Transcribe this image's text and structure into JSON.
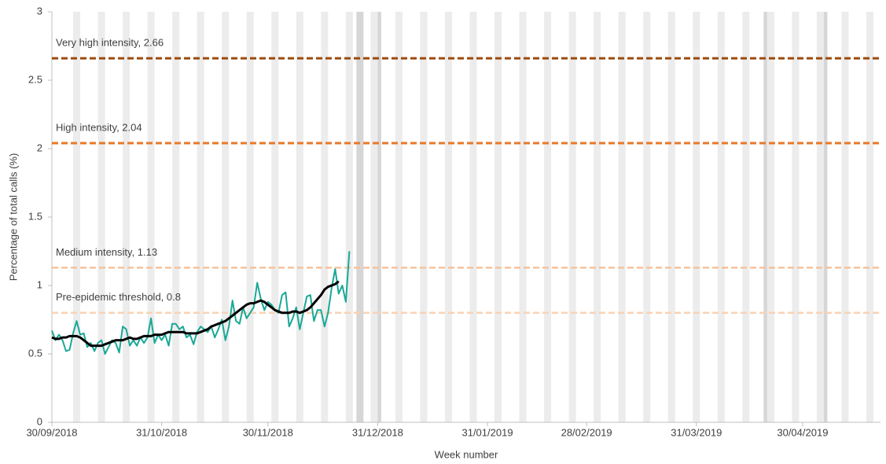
{
  "chart_data": {
    "type": "line",
    "y_label": "Percentage of total calls (%)",
    "x_label": "Week number",
    "x": [
      "30/09/2018",
      "01/10/2018",
      "02/10/2018",
      "03/10/2018",
      "04/10/2018",
      "05/10/2018",
      "06/10/2018",
      "07/10/2018",
      "08/10/2018",
      "09/10/2018",
      "10/10/2018",
      "11/10/2018",
      "12/10/2018",
      "13/10/2018",
      "14/10/2018",
      "15/10/2018",
      "16/10/2018",
      "17/10/2018",
      "18/10/2018",
      "19/10/2018",
      "20/10/2018",
      "21/10/2018",
      "22/10/2018",
      "23/10/2018",
      "24/10/2018",
      "25/10/2018",
      "26/10/2018",
      "27/10/2018",
      "28/10/2018",
      "29/10/2018",
      "30/10/2018",
      "31/10/2018",
      "01/11/2018",
      "02/11/2018",
      "03/11/2018",
      "04/11/2018",
      "05/11/2018",
      "06/11/2018",
      "07/11/2018",
      "08/11/2018",
      "09/11/2018",
      "10/11/2018",
      "11/11/2018",
      "12/11/2018",
      "13/11/2018",
      "14/11/2018",
      "15/11/2018",
      "16/11/2018",
      "17/11/2018",
      "18/11/2018",
      "19/11/2018",
      "20/11/2018",
      "21/11/2018",
      "22/11/2018",
      "23/11/2018",
      "24/11/2018",
      "25/11/2018",
      "26/11/2018",
      "27/11/2018",
      "28/11/2018",
      "29/11/2018",
      "30/11/2018",
      "01/12/2018",
      "02/12/2018",
      "03/12/2018",
      "04/12/2018",
      "05/12/2018",
      "06/12/2018",
      "07/12/2018",
      "08/12/2018",
      "09/12/2018",
      "10/12/2018",
      "11/12/2018",
      "12/12/2018",
      "13/12/2018",
      "14/12/2018",
      "15/12/2018",
      "16/12/2018",
      "17/12/2018",
      "18/12/2018",
      "19/12/2018",
      "20/12/2018",
      "21/12/2018",
      "22/12/2018",
      "23/12/2018"
    ],
    "series": [
      {
        "color": "#19a896",
        "width": 2,
        "values": [
          0.67,
          0.6,
          0.64,
          0.6,
          0.52,
          0.53,
          0.65,
          0.74,
          0.64,
          0.65,
          0.55,
          0.58,
          0.52,
          0.58,
          0.6,
          0.5,
          0.55,
          0.6,
          0.58,
          0.51,
          0.7,
          0.68,
          0.56,
          0.6,
          0.56,
          0.62,
          0.58,
          0.62,
          0.76,
          0.58,
          0.64,
          0.6,
          0.64,
          0.56,
          0.72,
          0.72,
          0.68,
          0.7,
          0.62,
          0.64,
          0.57,
          0.66,
          0.7,
          0.68,
          0.66,
          0.7,
          0.62,
          0.68,
          0.75,
          0.6,
          0.7,
          0.89,
          0.74,
          0.72,
          0.84,
          0.76,
          0.8,
          0.84,
          1.02,
          0.9,
          0.82,
          0.88,
          0.86,
          0.82,
          0.8,
          0.93,
          0.95,
          0.7,
          0.76,
          0.84,
          0.68,
          0.8,
          0.92,
          0.93,
          0.74,
          0.82,
          0.82,
          0.7,
          0.8,
          0.98,
          1.12,
          0.94,
          1.0,
          0.88,
          1.25
        ]
      },
      {
        "color": "#000000",
        "width": 3,
        "values": [
          0.62,
          0.61,
          0.61,
          0.62,
          0.62,
          0.63,
          0.63,
          0.63,
          0.62,
          0.6,
          0.58,
          0.56,
          0.56,
          0.56,
          0.56,
          0.57,
          0.58,
          0.59,
          0.6,
          0.6,
          0.6,
          0.61,
          0.62,
          0.61,
          0.61,
          0.62,
          0.63,
          0.63,
          0.63,
          0.64,
          0.64,
          0.64,
          0.65,
          0.66,
          0.66,
          0.66,
          0.66,
          0.66,
          0.65,
          0.65,
          0.65,
          0.65,
          0.66,
          0.67,
          0.68,
          0.7,
          0.71,
          0.72,
          0.73,
          0.74,
          0.76,
          0.78,
          0.8,
          0.82,
          0.84,
          0.86,
          0.87,
          0.87,
          0.88,
          0.89,
          0.88,
          0.86,
          0.84,
          0.82,
          0.81,
          0.8,
          0.8,
          0.8,
          0.81,
          0.81,
          0.8,
          0.81,
          0.82,
          0.84,
          0.87,
          0.9,
          0.93,
          0.97,
          0.99,
          1.0,
          1.01,
          1.03,
          null,
          null,
          null
        ]
      }
    ],
    "thresholds": [
      {
        "label": "Very high intensity, 2.66",
        "value": 2.66,
        "color": "#9c4a0c"
      },
      {
        "label": "High intensity, 2.04",
        "value": 2.04,
        "color": "#e8782a"
      },
      {
        "label": "Medium intensity, 1.13",
        "value": 1.13,
        "color": "#f5c29c"
      },
      {
        "label": "Pre-epidemic threshold, 0.8",
        "value": 0.8,
        "color": "#f8d3b6"
      }
    ],
    "xlim": [
      "30/09/2018",
      "22/05/2019"
    ],
    "xticks": [
      "30/09/2018",
      "31/10/2018",
      "30/11/2018",
      "31/12/2018",
      "31/01/2019",
      "28/02/2019",
      "31/03/2019",
      "30/04/2019"
    ],
    "ylim": [
      0,
      3
    ],
    "yticks": [
      0,
      0.5,
      1,
      1.5,
      2,
      2.5,
      3
    ]
  }
}
